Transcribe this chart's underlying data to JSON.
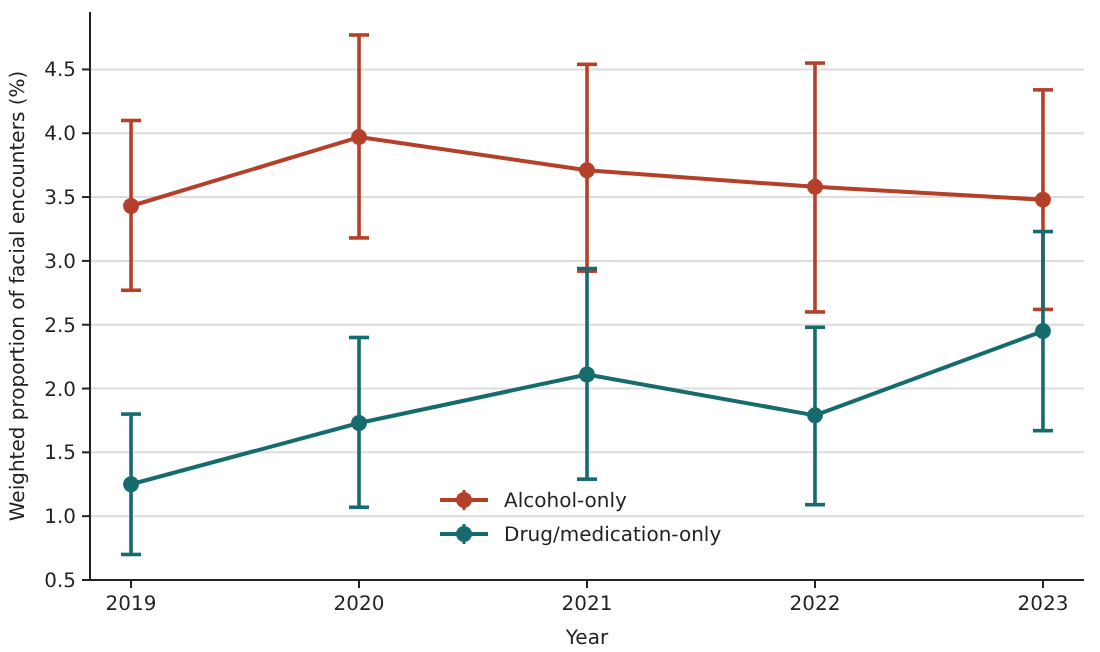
{
  "chart_data": {
    "type": "line",
    "xlabel": "Year",
    "ylabel": "Weighted proportion of facial encounters (%)",
    "categories": [
      "2019",
      "2020",
      "2021",
      "2022",
      "2023"
    ],
    "series": [
      {
        "name": "Alcohol-only",
        "color": "#b5402a",
        "values": [
          3.43,
          3.97,
          3.71,
          3.58,
          3.48
        ],
        "errors": [
          [
            2.77,
            4.1
          ],
          [
            3.18,
            4.77
          ],
          [
            2.92,
            4.54
          ],
          [
            2.6,
            4.55
          ],
          [
            2.62,
            4.34
          ]
        ]
      },
      {
        "name": "Drug/medication-only",
        "color": "#156b6e",
        "values": [
          1.25,
          1.73,
          2.11,
          1.79,
          2.45
        ],
        "errors": [
          [
            0.7,
            1.8
          ],
          [
            1.07,
            2.4
          ],
          [
            1.29,
            2.94
          ],
          [
            1.09,
            2.48
          ],
          [
            1.67,
            3.23
          ]
        ]
      }
    ],
    "ylim": [
      0.5,
      4.95
    ],
    "yticks": [
      0.5,
      {
        "value": 1,
        "label": "1.0"
      },
      1.5,
      {
        "value": 2,
        "label": "2.0"
      },
      2.5,
      {
        "value": 3,
        "label": "3.0"
      },
      3.5,
      {
        "value": 4,
        "label": "4.0"
      },
      4.5
    ],
    "grid": "y",
    "legend": "bottom",
    "marker": "circle",
    "line_style": "solid"
  }
}
